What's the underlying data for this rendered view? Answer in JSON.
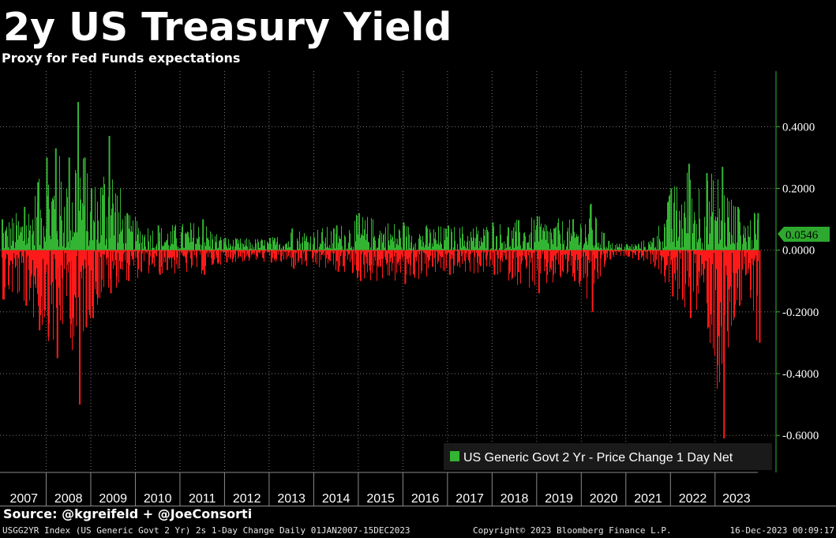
{
  "chart_data": {
    "type": "bar",
    "title": "2y US Treasury Yield",
    "subtitle": "Proxy for Fed Funds expectations",
    "x_tick_labels": [
      "2007",
      "2008",
      "2009",
      "2010",
      "2011",
      "2012",
      "2013",
      "2014",
      "2015",
      "2016",
      "2017",
      "2018",
      "2019",
      "2020",
      "2021",
      "2022",
      "2023"
    ],
    "y_tick_labels": [
      "0.4000",
      "0.2000",
      "0.0000",
      "-0.2000",
      "-0.4000",
      "-0.6000"
    ],
    "ylim": [
      -0.72,
      0.58
    ],
    "y_ticks": [
      0.4,
      0.2,
      0.0,
      -0.2,
      -0.4,
      -0.6
    ],
    "x_range": [
      "2007-01-01",
      "2023-12-15"
    ],
    "last_value": "0.0546",
    "positive_color": "#33b533",
    "negative_color": "#ff1a1a",
    "grid": true,
    "legend_position": "bottom-right",
    "series": [
      {
        "name": "US Generic Govt 2 Yr - Price Change 1 Day Net",
        "envelope": [
          {
            "year": 2007.0,
            "max": 0.1,
            "min": -0.16
          },
          {
            "year": 2007.5,
            "max": 0.14,
            "min": -0.18
          },
          {
            "year": 2007.8,
            "max": 0.22,
            "min": -0.26
          },
          {
            "year": 2008.0,
            "max": 0.3,
            "min": -0.28
          },
          {
            "year": 2008.2,
            "max": 0.33,
            "min": -0.35
          },
          {
            "year": 2008.5,
            "max": 0.3,
            "min": -0.24
          },
          {
            "year": 2008.7,
            "max": 0.48,
            "min": -0.5
          },
          {
            "year": 2008.85,
            "max": 0.3,
            "min": -0.25
          },
          {
            "year": 2009.0,
            "max": 0.2,
            "min": -0.22
          },
          {
            "year": 2009.4,
            "max": 0.37,
            "min": -0.14
          },
          {
            "year": 2009.8,
            "max": 0.12,
            "min": -0.1
          },
          {
            "year": 2010.5,
            "max": 0.08,
            "min": -0.08
          },
          {
            "year": 2011.5,
            "max": 0.1,
            "min": -0.08
          },
          {
            "year": 2012.0,
            "max": 0.04,
            "min": -0.04
          },
          {
            "year": 2013.0,
            "max": 0.04,
            "min": -0.04
          },
          {
            "year": 2013.5,
            "max": 0.07,
            "min": -0.06
          },
          {
            "year": 2014.5,
            "max": 0.08,
            "min": -0.07
          },
          {
            "year": 2015.0,
            "max": 0.12,
            "min": -0.1
          },
          {
            "year": 2016.0,
            "max": 0.09,
            "min": -0.11
          },
          {
            "year": 2017.0,
            "max": 0.08,
            "min": -0.08
          },
          {
            "year": 2018.0,
            "max": 0.09,
            "min": -0.08
          },
          {
            "year": 2019.0,
            "max": 0.11,
            "min": -0.14
          },
          {
            "year": 2019.8,
            "max": 0.1,
            "min": -0.1
          },
          {
            "year": 2020.2,
            "max": 0.15,
            "min": -0.2
          },
          {
            "year": 2020.6,
            "max": 0.03,
            "min": -0.03
          },
          {
            "year": 2021.0,
            "max": 0.02,
            "min": -0.02
          },
          {
            "year": 2021.6,
            "max": 0.04,
            "min": -0.05
          },
          {
            "year": 2022.0,
            "max": 0.2,
            "min": -0.15
          },
          {
            "year": 2022.4,
            "max": 0.28,
            "min": -0.22
          },
          {
            "year": 2022.8,
            "max": 0.25,
            "min": -0.25
          },
          {
            "year": 2023.15,
            "max": 0.27,
            "min": -0.61
          },
          {
            "year": 2023.5,
            "max": 0.14,
            "min": -0.18
          },
          {
            "year": 2023.95,
            "max": 0.12,
            "min": -0.3
          }
        ]
      }
    ]
  },
  "footer": {
    "source": "Source: @kgreifeld + @JoeConsorti",
    "ticker": "USGG2YR Index (US Generic Govt 2 Yr) 2s 1-Day Change  Daily 01JAN2007-15DEC2023",
    "copyright": "Copyright© 2023 Bloomberg Finance L.P.",
    "timestamp": "16-Dec-2023 00:09:17"
  }
}
